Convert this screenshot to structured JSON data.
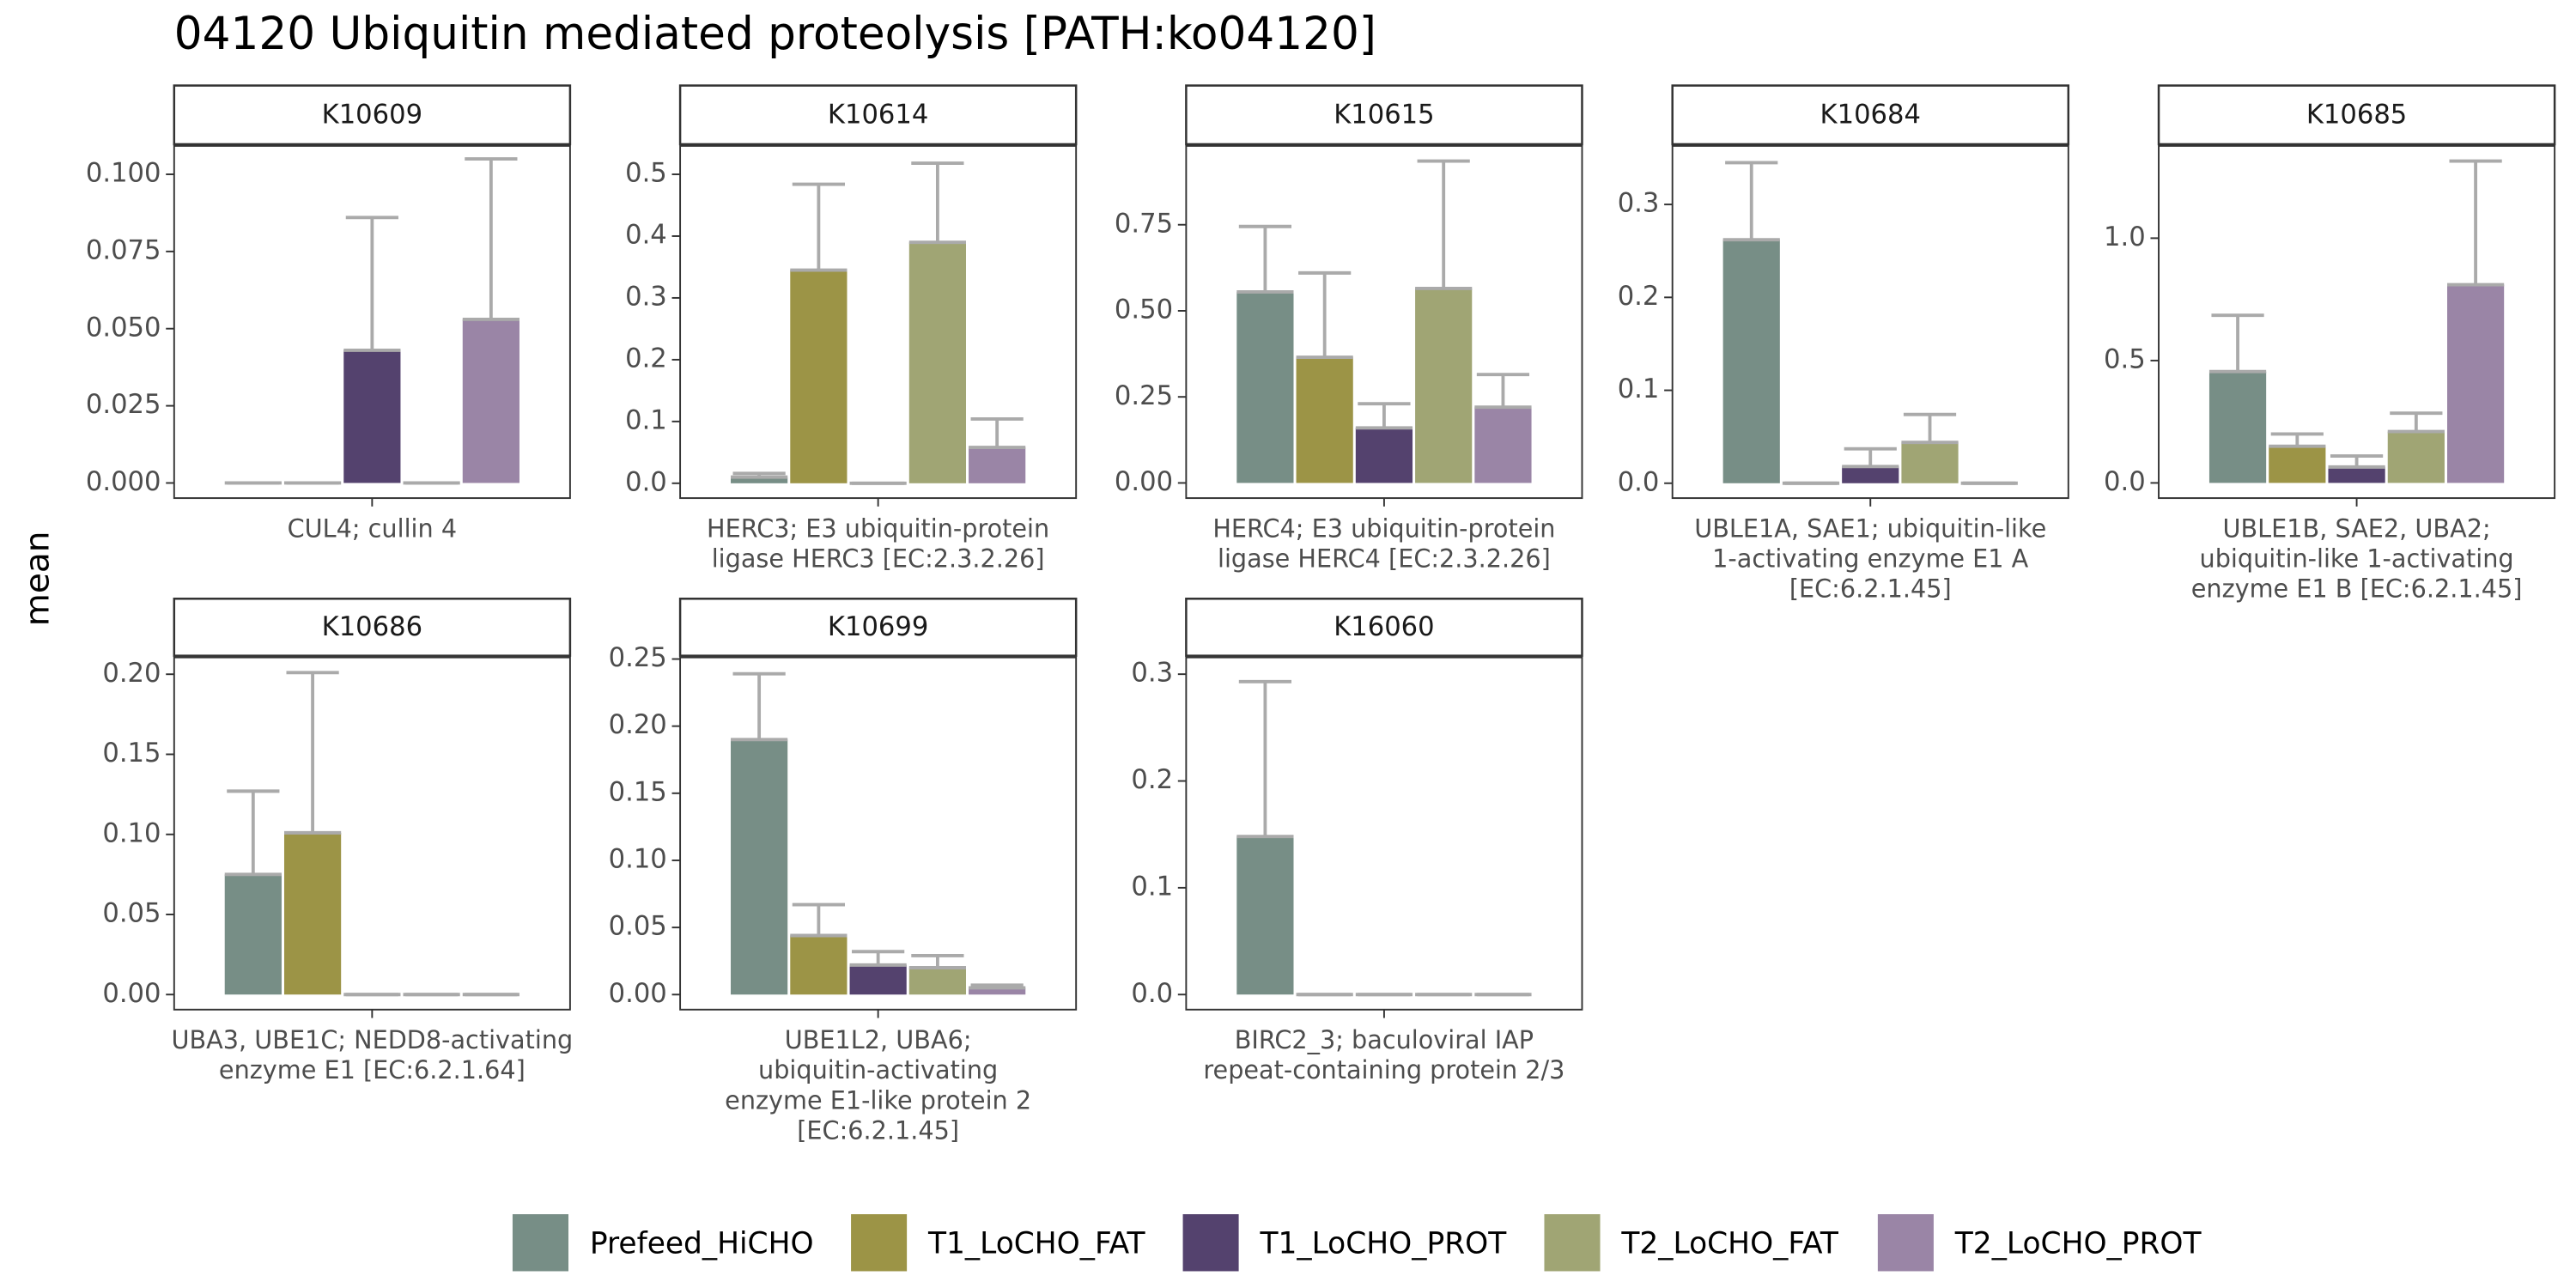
{
  "title": "04120 Ubiquitin mediated proteolysis [PATH:ko04120]",
  "y_label": "mean",
  "legend": [
    {
      "name": "Prefeed_HiCHO",
      "color": "#778e86"
    },
    {
      "name": "T1_LoCHO_FAT",
      "color": "#9c9446"
    },
    {
      "name": "T1_LoCHO_PROT",
      "color": "#54426e"
    },
    {
      "name": "T2_LoCHO_FAT",
      "color": "#a0a574"
    },
    {
      "name": "T2_LoCHO_PROT",
      "color": "#9a85a6"
    }
  ],
  "chart_data": [
    {
      "type": "bar",
      "title": "K10609",
      "x_label_lines": [
        "CUL4; cullin 4"
      ],
      "values": [
        0,
        0,
        0.043,
        0,
        0.053
      ],
      "errors": [
        0,
        0,
        0.043,
        0,
        0.052
      ],
      "ylim": [
        -0.0049,
        0.1092
      ],
      "yticks": [
        {
          "value": 0,
          "label": "0.000"
        },
        {
          "value": 0.025,
          "label": "0.025"
        },
        {
          "value": 0.05,
          "label": "0.050"
        },
        {
          "value": 0.075,
          "label": "0.075"
        },
        {
          "value": 0.1,
          "label": "0.100"
        }
      ]
    },
    {
      "type": "bar",
      "title": "K10614",
      "x_label_lines": [
        "HERC3; E3 ubiquitin-protein",
        "ligase HERC3 [EC:2.3.2.26]"
      ],
      "values": [
        0.01,
        0.345,
        0,
        0.39,
        0.058
      ],
      "errors": [
        0.006,
        0.139,
        0,
        0.128,
        0.046
      ],
      "ylim": [
        -0.024,
        0.546
      ],
      "yticks": [
        {
          "value": 0,
          "label": "0.0"
        },
        0.1,
        0.2,
        0.3,
        0.4,
        0.5
      ]
    },
    {
      "type": "bar",
      "title": "K10615",
      "x_label_lines": [
        "HERC4; E3 ubiquitin-protein",
        "ligase HERC4 [EC:2.3.2.26]"
      ],
      "values": [
        0.555,
        0.365,
        0.16,
        0.565,
        0.22
      ],
      "errors": [
        0.19,
        0.245,
        0.07,
        0.37,
        0.095
      ],
      "ylim": [
        -0.044,
        0.979
      ],
      "yticks": [
        {
          "value": 0,
          "label": "0.00"
        },
        0.25,
        {
          "value": 0.5,
          "label": "0.50"
        },
        0.75
      ]
    },
    {
      "type": "bar",
      "title": "K10684",
      "x_label_lines": [
        "UBLE1A, SAE1; ubiquitin-like",
        "1-activating enzyme E1 A",
        "[EC:6.2.1.45]"
      ],
      "values": [
        0.262,
        0,
        0.018,
        0.044,
        0
      ],
      "errors": [
        0.083,
        0,
        0.019,
        0.03,
        0
      ],
      "ylim": [
        -0.016,
        0.363
      ],
      "yticks": [
        {
          "value": 0,
          "label": "0.0"
        },
        0.1,
        0.2,
        0.3
      ]
    },
    {
      "type": "bar",
      "title": "K10685",
      "x_label_lines": [
        "UBLE1B, SAE2, UBA2;",
        "ubiquitin-like 1-activating",
        "enzyme E1 B [EC:6.2.1.45]"
      ],
      "values": [
        0.455,
        0.15,
        0.065,
        0.21,
        0.81
      ],
      "errors": [
        0.23,
        0.05,
        0.045,
        0.075,
        0.505
      ],
      "ylim": [
        -0.062,
        1.377
      ],
      "yticks": [
        {
          "value": 0,
          "label": "0.0"
        },
        0.5,
        {
          "value": 1,
          "label": "1.0"
        }
      ]
    },
    {
      "type": "bar",
      "title": "K10686",
      "x_label_lines": [
        "UBA3, UBE1C; NEDD8-activating",
        "enzyme E1 [EC:6.2.1.64]"
      ],
      "values": [
        0.075,
        0.101,
        0,
        0,
        0
      ],
      "errors": [
        0.052,
        0.1,
        0,
        0,
        0
      ],
      "ylim": [
        -0.0094,
        0.2105
      ],
      "yticks": [
        {
          "value": 0,
          "label": "0.00"
        },
        0.05,
        {
          "value": 0.1,
          "label": "0.10"
        },
        0.15,
        {
          "value": 0.2,
          "label": "0.20"
        }
      ]
    },
    {
      "type": "bar",
      "title": "K10699",
      "x_label_lines": [
        "UBE1L2, UBA6;",
        "ubiquitin-activating",
        "enzyme E1-like protein 2",
        "[EC:6.2.1.45]"
      ],
      "values": [
        0.19,
        0.044,
        0.022,
        0.02,
        0.005
      ],
      "errors": [
        0.049,
        0.023,
        0.01,
        0.009,
        0.002
      ],
      "ylim": [
        -0.0112,
        0.2512
      ],
      "yticks": [
        {
          "value": 0,
          "label": "0.00"
        },
        0.05,
        {
          "value": 0.1,
          "label": "0.10"
        },
        0.15,
        {
          "value": 0.2,
          "label": "0.20"
        },
        0.25
      ]
    },
    {
      "type": "bar",
      "title": "K16060",
      "x_label_lines": [
        "BIRC2_3; baculoviral IAP",
        "repeat-containing protein 2/3"
      ],
      "values": [
        0.148,
        0,
        0,
        0,
        0
      ],
      "errors": [
        0.145,
        0,
        0,
        0,
        0
      ],
      "ylim": [
        -0.0141,
        0.3157
      ],
      "yticks": [
        {
          "value": 0,
          "label": "0.0"
        },
        0.1,
        0.2,
        0.3
      ]
    }
  ]
}
